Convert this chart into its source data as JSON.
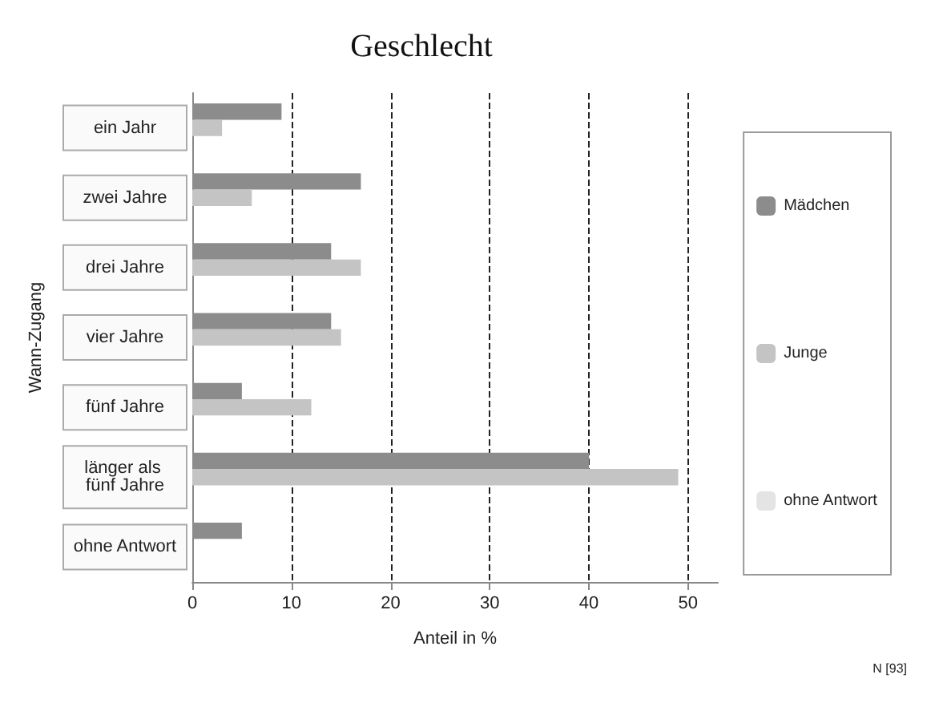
{
  "chart_data": {
    "type": "bar",
    "orientation": "horizontal",
    "title": "Geschlecht",
    "xlabel": "Anteil in %",
    "ylabel": "Wann-Zugang",
    "categories": [
      "ein Jahr",
      "zwei Jahre",
      "drei Jahre",
      "vier Jahre",
      "fünf Jahre",
      "länger als fünf Jahre",
      "ohne Antwort"
    ],
    "series": [
      {
        "name": "Mädchen",
        "color": "#8c8c8c",
        "values": [
          9,
          17,
          14,
          14,
          5,
          40,
          5
        ]
      },
      {
        "name": "Junge",
        "color": "#c4c4c4",
        "values": [
          3,
          6,
          17,
          15,
          12,
          49,
          0
        ]
      },
      {
        "name": "ohne Antwort",
        "color": "#e4e4e4",
        "values": [
          0,
          0,
          0,
          0,
          0,
          0,
          0
        ]
      }
    ],
    "xlim": [
      0,
      53
    ],
    "xticks": [
      0,
      10,
      20,
      30,
      40,
      50
    ],
    "grid": "x",
    "legend": "right",
    "annotations": [
      "N [93]"
    ]
  }
}
